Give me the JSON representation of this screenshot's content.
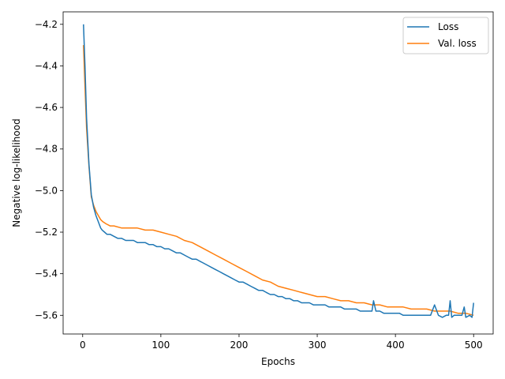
{
  "chart_data": {
    "type": "line",
    "xlabel": "Epochs",
    "ylabel": "Negative log-likelihood",
    "xlim": [
      -25,
      525
    ],
    "ylim": [
      -5.69,
      -4.14
    ],
    "xticks": [
      0,
      100,
      200,
      300,
      400,
      500
    ],
    "yticks": [
      -5.6,
      -5.4,
      -5.2,
      -5.0,
      -4.8,
      -4.6,
      -4.4,
      -4.2
    ],
    "xtick_labels": [
      "0",
      "100",
      "200",
      "300",
      "400",
      "500"
    ],
    "ytick_labels": [
      "−5.6",
      "−5.4",
      "−5.2",
      "−5.0",
      "−4.8",
      "−4.6",
      "−4.4",
      "−4.2"
    ],
    "grid": false,
    "legend_position": "top-right",
    "series": [
      {
        "name": "Loss",
        "color": "#1f77b4",
        "x": [
          1,
          3,
          5,
          8,
          11,
          14,
          17,
          20,
          23,
          25,
          28,
          31,
          35,
          40,
          45,
          50,
          55,
          60,
          65,
          70,
          75,
          80,
          85,
          90,
          95,
          100,
          105,
          110,
          115,
          120,
          125,
          130,
          135,
          140,
          145,
          150,
          155,
          160,
          165,
          170,
          175,
          180,
          185,
          190,
          195,
          200,
          205,
          210,
          215,
          220,
          225,
          230,
          235,
          240,
          245,
          250,
          255,
          260,
          265,
          270,
          275,
          280,
          285,
          290,
          295,
          300,
          305,
          310,
          315,
          320,
          325,
          330,
          335,
          340,
          345,
          350,
          355,
          360,
          365,
          370,
          372,
          375,
          380,
          385,
          390,
          395,
          400,
          405,
          410,
          415,
          420,
          425,
          430,
          435,
          440,
          445,
          450,
          455,
          460,
          465,
          468,
          470,
          472,
          475,
          480,
          485,
          488,
          490,
          495,
          498,
          500
        ],
        "values": [
          -4.2,
          -4.4,
          -4.65,
          -4.87,
          -5.02,
          -5.08,
          -5.12,
          -5.15,
          -5.18,
          -5.19,
          -5.2,
          -5.21,
          -5.21,
          -5.22,
          -5.23,
          -5.23,
          -5.24,
          -5.24,
          -5.24,
          -5.25,
          -5.25,
          -5.25,
          -5.26,
          -5.26,
          -5.27,
          -5.27,
          -5.28,
          -5.28,
          -5.29,
          -5.3,
          -5.3,
          -5.31,
          -5.32,
          -5.33,
          -5.33,
          -5.34,
          -5.35,
          -5.36,
          -5.37,
          -5.38,
          -5.39,
          -5.4,
          -5.41,
          -5.42,
          -5.43,
          -5.44,
          -5.44,
          -5.45,
          -5.46,
          -5.47,
          -5.48,
          -5.48,
          -5.49,
          -5.5,
          -5.5,
          -5.51,
          -5.51,
          -5.52,
          -5.52,
          -5.53,
          -5.53,
          -5.54,
          -5.54,
          -5.54,
          -5.55,
          -5.55,
          -5.55,
          -5.55,
          -5.56,
          -5.56,
          -5.56,
          -5.56,
          -5.57,
          -5.57,
          -5.57,
          -5.57,
          -5.58,
          -5.58,
          -5.58,
          -5.58,
          -5.53,
          -5.58,
          -5.58,
          -5.59,
          -5.59,
          -5.59,
          -5.59,
          -5.59,
          -5.6,
          -5.6,
          -5.6,
          -5.6,
          -5.6,
          -5.6,
          -5.6,
          -5.6,
          -5.55,
          -5.6,
          -5.61,
          -5.6,
          -5.6,
          -5.53,
          -5.61,
          -5.6,
          -5.6,
          -5.6,
          -5.56,
          -5.61,
          -5.6,
          -5.61,
          -5.54
        ]
      },
      {
        "name": "Val. loss",
        "color": "#ff7f0e",
        "x": [
          1,
          3,
          5,
          8,
          11,
          14,
          17,
          20,
          23,
          26,
          30,
          35,
          40,
          50,
          60,
          70,
          80,
          90,
          100,
          110,
          120,
          130,
          140,
          150,
          160,
          170,
          180,
          190,
          200,
          210,
          220,
          230,
          240,
          250,
          260,
          270,
          280,
          290,
          300,
          310,
          320,
          330,
          340,
          350,
          360,
          370,
          380,
          390,
          400,
          410,
          420,
          430,
          440,
          450,
          460,
          470,
          480,
          490,
          500
        ],
        "values": [
          -4.3,
          -4.5,
          -4.7,
          -4.88,
          -5.03,
          -5.07,
          -5.1,
          -5.12,
          -5.14,
          -5.15,
          -5.16,
          -5.17,
          -5.17,
          -5.18,
          -5.18,
          -5.18,
          -5.19,
          -5.19,
          -5.2,
          -5.21,
          -5.22,
          -5.24,
          -5.25,
          -5.27,
          -5.29,
          -5.31,
          -5.33,
          -5.35,
          -5.37,
          -5.39,
          -5.41,
          -5.43,
          -5.44,
          -5.46,
          -5.47,
          -5.48,
          -5.49,
          -5.5,
          -5.51,
          -5.51,
          -5.52,
          -5.53,
          -5.53,
          -5.54,
          -5.54,
          -5.55,
          -5.55,
          -5.56,
          -5.56,
          -5.56,
          -5.57,
          -5.57,
          -5.57,
          -5.58,
          -5.58,
          -5.58,
          -5.59,
          -5.59,
          -5.6
        ]
      }
    ]
  }
}
